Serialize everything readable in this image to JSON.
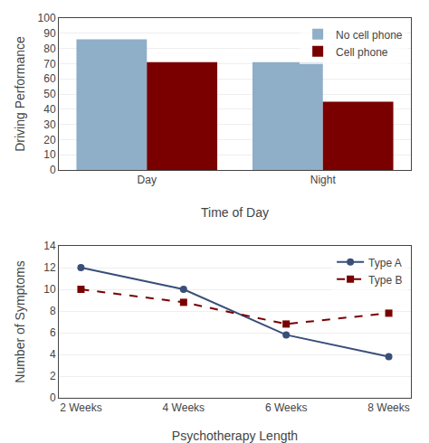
{
  "chart_data": [
    {
      "type": "bar",
      "categories": [
        "Day",
        "Night"
      ],
      "series": [
        {
          "name": "No cell phone",
          "color": "#8faec8",
          "values": [
            86,
            71
          ]
        },
        {
          "name": "Cell phone",
          "color": "#7a0000",
          "values": [
            71,
            45
          ]
        }
      ],
      "xlabel": "Time of Day",
      "ylabel": "Driving Performance",
      "ylim": [
        0,
        100
      ],
      "yticks": [
        0,
        10,
        20,
        30,
        40,
        50,
        60,
        70,
        80,
        90,
        100
      ],
      "grid": true,
      "legend": "upper right"
    },
    {
      "type": "line",
      "categories": [
        "2 Weeks",
        "4 Weeks",
        "6 Weeks",
        "8 Weeks"
      ],
      "series": [
        {
          "name": "Type A",
          "color": "#3a4e7a",
          "marker": "circle",
          "line_style": "solid",
          "values": [
            12,
            10,
            5.8,
            3.8
          ]
        },
        {
          "name": "Type B",
          "color": "#7a0000",
          "marker": "square",
          "line_style": "dashed",
          "values": [
            10,
            8.8,
            6.8,
            7.8
          ]
        }
      ],
      "xlabel": "Psychotherapy Length",
      "ylabel": "Number of Symptoms",
      "ylim": [
        0,
        14
      ],
      "yticks": [
        0,
        2,
        4,
        6,
        8,
        10,
        12,
        14
      ],
      "grid": true,
      "legend": "upper right"
    }
  ]
}
